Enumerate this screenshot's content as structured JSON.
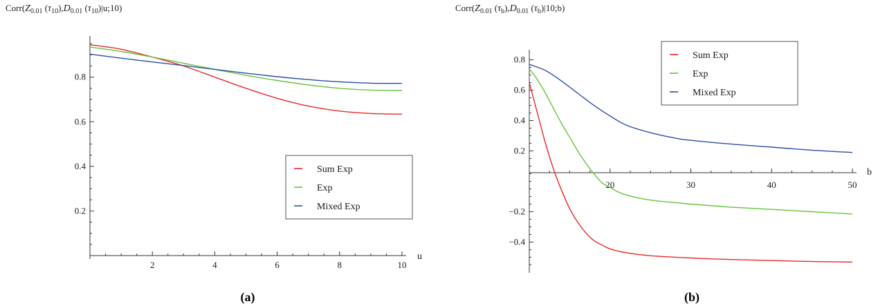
{
  "chart_data": [
    {
      "type": "line",
      "ylabel": "Corr(Z",
      "ylabel_parts": [
        "Corr(",
        "Z",
        "0.01",
        " (",
        "τ",
        "10",
        "),",
        "D",
        "0.01",
        " (",
        "τ",
        "10",
        ")|u;10)"
      ],
      "xlabel": "u",
      "caption": "(a)",
      "xlim": [
        0,
        10
      ],
      "ylim": [
        0,
        0.96
      ],
      "xticks": [
        2,
        4,
        6,
        8,
        10
      ],
      "xtick_labels": [
        "2",
        "4",
        "6",
        "8",
        "10"
      ],
      "yticks": [
        0.2,
        0.4,
        0.6,
        0.8
      ],
      "ytick_labels": [
        "0.2",
        "0.4",
        "0.6",
        "0.8"
      ],
      "legend_position": "lower-right",
      "grid": false,
      "series": [
        {
          "name": "Sum Exp",
          "color": "#e8262a",
          "x": [
            0,
            1,
            2,
            3,
            4,
            5,
            6,
            7,
            8,
            9,
            10
          ],
          "y": [
            0.945,
            0.925,
            0.89,
            0.85,
            0.8,
            0.75,
            0.705,
            0.67,
            0.648,
            0.637,
            0.634
          ]
        },
        {
          "name": "Exp",
          "color": "#67c13f",
          "x": [
            0,
            1,
            2,
            3,
            4,
            5,
            6,
            7,
            8,
            9,
            10
          ],
          "y": [
            0.935,
            0.915,
            0.89,
            0.862,
            0.835,
            0.808,
            0.785,
            0.765,
            0.75,
            0.742,
            0.74
          ]
        },
        {
          "name": "Mixed Exp",
          "color": "#2b4ea2",
          "x": [
            0,
            1,
            2,
            3,
            4,
            5,
            6,
            7,
            8,
            9,
            10
          ],
          "y": [
            0.903,
            0.885,
            0.868,
            0.852,
            0.835,
            0.818,
            0.802,
            0.789,
            0.779,
            0.773,
            0.772
          ]
        }
      ]
    },
    {
      "type": "line",
      "ylabel": "Corr(Z",
      "ylabel_parts": [
        "Corr(",
        "Z",
        "0.01",
        " (",
        "τ",
        "b",
        "),",
        "D",
        "0.01",
        " (",
        "τ",
        "b",
        ")|10;b)"
      ],
      "xlabel": "b",
      "caption": "(b)",
      "xlim": [
        10,
        50
      ],
      "ylim": [
        -0.58,
        0.83
      ],
      "xticks": [
        20,
        30,
        40,
        50
      ],
      "xtick_labels": [
        "20",
        "30",
        "40",
        "50"
      ],
      "yticks": [
        -0.4,
        -0.2,
        0.2,
        0.4,
        0.6,
        0.8
      ],
      "ytick_labels": [
        "−0.4",
        "−0.2",
        "0.2",
        "0.4",
        "0.6",
        "0.8"
      ],
      "legend_position": "upper-right",
      "grid": false,
      "series": [
        {
          "name": "Sum Exp",
          "color": "#e8262a",
          "x": [
            10,
            11,
            12,
            13,
            14,
            15,
            16,
            17,
            18,
            19,
            20,
            22,
            25,
            30,
            35,
            40,
            45,
            50
          ],
          "y": [
            0.65,
            0.45,
            0.25,
            0.08,
            -0.06,
            -0.18,
            -0.27,
            -0.34,
            -0.39,
            -0.42,
            -0.445,
            -0.47,
            -0.49,
            -0.505,
            -0.515,
            -0.522,
            -0.528,
            -0.532
          ]
        },
        {
          "name": "Exp",
          "color": "#67c13f",
          "x": [
            10,
            11,
            12,
            13,
            14,
            15,
            16,
            17,
            18,
            19,
            20,
            21,
            22,
            24,
            26,
            30,
            35,
            40,
            45,
            50
          ],
          "y": [
            0.74,
            0.67,
            0.58,
            0.48,
            0.38,
            0.29,
            0.2,
            0.12,
            0.05,
            -0.01,
            -0.04,
            -0.07,
            -0.09,
            -0.115,
            -0.13,
            -0.15,
            -0.17,
            -0.185,
            -0.2,
            -0.215
          ]
        },
        {
          "name": "Mixed Exp",
          "color": "#2b4ea2",
          "x": [
            10,
            12,
            14,
            16,
            18,
            20,
            22,
            25,
            28,
            30,
            35,
            40,
            45,
            50
          ],
          "y": [
            0.77,
            0.73,
            0.66,
            0.58,
            0.5,
            0.43,
            0.37,
            0.32,
            0.285,
            0.27,
            0.245,
            0.225,
            0.205,
            0.19
          ]
        }
      ]
    }
  ]
}
